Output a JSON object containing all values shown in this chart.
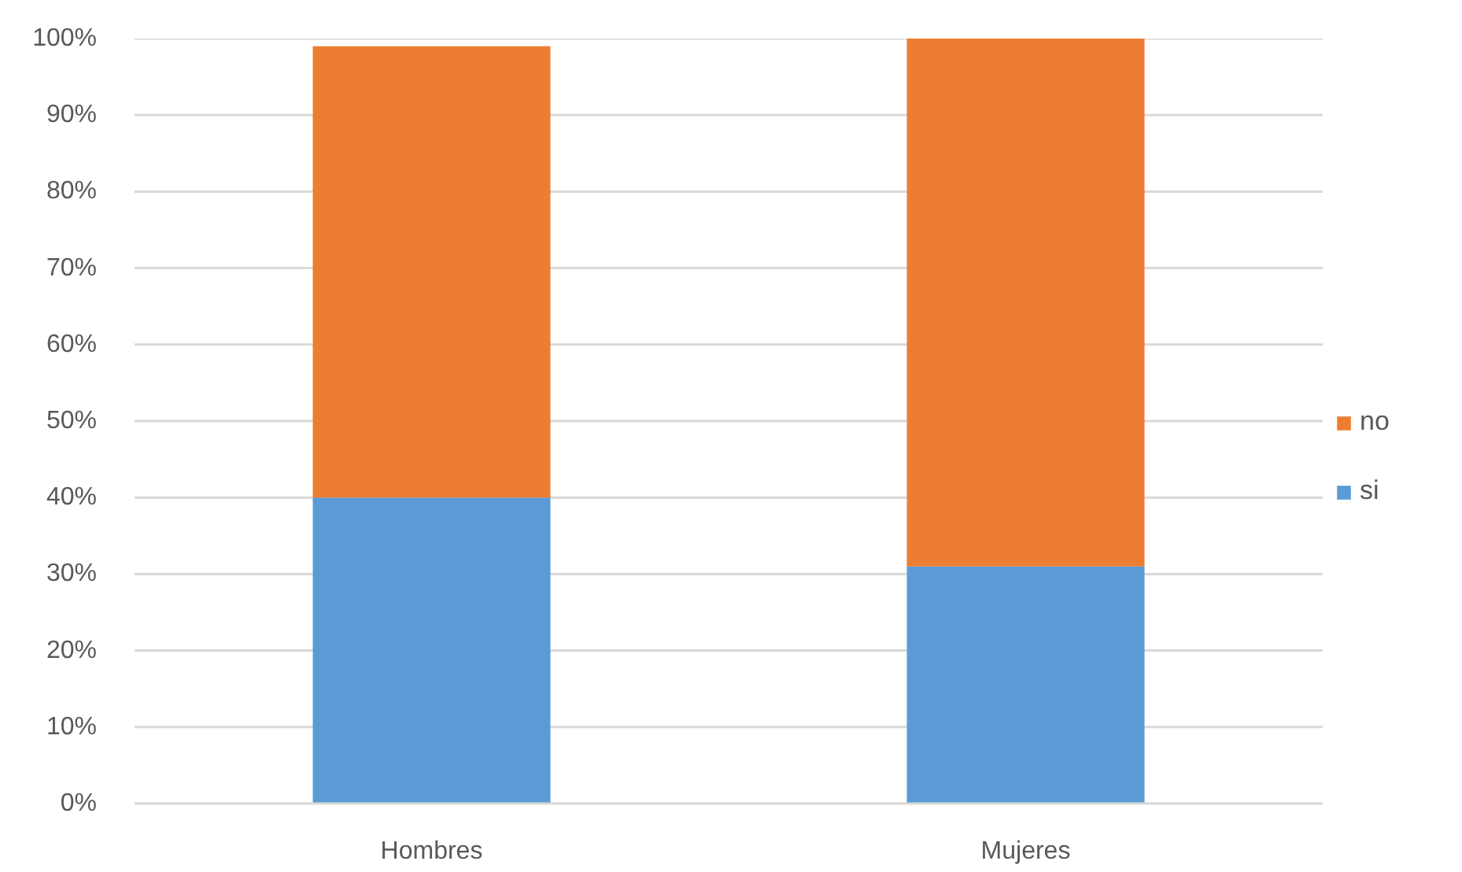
{
  "chart_data": {
    "type": "bar",
    "stacked": true,
    "categories": [
      "Hombres",
      "Mujeres"
    ],
    "series": [
      {
        "name": "si",
        "color": "#5b9bd5",
        "values": [
          40,
          31
        ]
      },
      {
        "name": "no",
        "color": "#ed7d31",
        "values": [
          59,
          69
        ]
      }
    ],
    "ylim": [
      0,
      100
    ],
    "yticks": [
      {
        "value": 0,
        "label": "0%"
      },
      {
        "value": 10,
        "label": "10%"
      },
      {
        "value": 20,
        "label": "20%"
      },
      {
        "value": 30,
        "label": "30%"
      },
      {
        "value": 40,
        "label": "40%"
      },
      {
        "value": 50,
        "label": "50%"
      },
      {
        "value": 60,
        "label": "60%"
      },
      {
        "value": 70,
        "label": "70%"
      },
      {
        "value": 80,
        "label": "80%"
      },
      {
        "value": 90,
        "label": "90%"
      },
      {
        "value": 100,
        "label": "100%"
      }
    ],
    "grid": "y",
    "legend": "right"
  }
}
